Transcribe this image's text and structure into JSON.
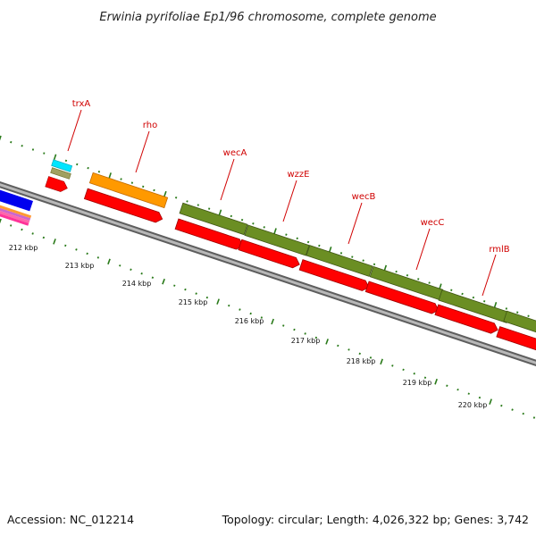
{
  "title": "Erwinia pyrifoliae Ep1/96 chromosome, complete genome",
  "footer": {
    "accession": "Accession: NC_012214",
    "summary": "Topology: circular; Length: 4,026,322 bp; Genes: 3,742"
  },
  "colors": {
    "backbone": "#888888",
    "tick": "#2a7a1a",
    "cds_reverse": "#ff0000",
    "gene_forward": "#6b8e23",
    "orange_feature": "#ff9900",
    "cyan_feature": "#00e5ff",
    "blue_feature": "#0000ff",
    "label": "#d00000"
  },
  "genes": [
    {
      "name": "trxA"
    },
    {
      "name": "rho"
    },
    {
      "name": "wecA"
    },
    {
      "name": "wzzE"
    },
    {
      "name": "wecB"
    },
    {
      "name": "wecC"
    },
    {
      "name": "rmlB"
    }
  ],
  "scale_labels": [
    "212 kbp",
    "213 kbp",
    "214 kbp",
    "215 kbp",
    "216 kbp",
    "217 kbp",
    "218 kbp",
    "219 kbp",
    "220 kbp"
  ]
}
